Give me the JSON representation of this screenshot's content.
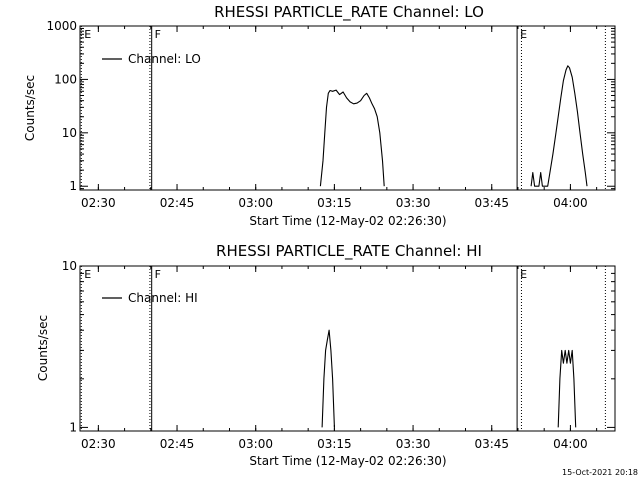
{
  "footer": {
    "timestamp": "15-Oct-2021 20:18"
  },
  "chart_data": [
    {
      "type": "line",
      "title": "RHESSI PARTICLE_RATE Channel: LO",
      "xlabel": "Start Time (12-May-02 02:26:30)",
      "ylabel": "Counts/sec",
      "y_scale": "log",
      "ylim": [
        0.85,
        1000
      ],
      "xlim": [
        "02:26:30",
        "04:08:30"
      ],
      "x_ticks": [
        "02:30",
        "02:45",
        "03:00",
        "03:15",
        "03:30",
        "03:45",
        "04:00"
      ],
      "y_ticks": [
        {
          "value": 1,
          "label": "1"
        },
        {
          "value": 10,
          "label": "10"
        },
        {
          "value": 100,
          "label": "100"
        },
        {
          "value": 1000,
          "label": "1000"
        }
      ],
      "legend": {
        "label": "Channel: LO",
        "position": "top-left"
      },
      "markers": [
        {
          "time": "02:26:45",
          "style": "dotted",
          "label": "E"
        },
        {
          "time": "02:39:50",
          "style": "dotted",
          "label": ""
        },
        {
          "time": "02:40:10",
          "style": "solid",
          "label": "F"
        },
        {
          "time": "03:49:50",
          "style": "solid",
          "label": "E"
        },
        {
          "time": "03:50:40",
          "style": "dotted",
          "label": ""
        },
        {
          "time": "04:06:40",
          "style": "dotted",
          "label": ""
        }
      ],
      "series": [
        {
          "name": "Channel: LO",
          "points": [
            [
              "03:12:20",
              1
            ],
            [
              "03:12:50",
              3
            ],
            [
              "03:13:10",
              10
            ],
            [
              "03:13:30",
              30
            ],
            [
              "03:13:50",
              55
            ],
            [
              "03:14:10",
              62
            ],
            [
              "03:14:40",
              60
            ],
            [
              "03:15:20",
              63
            ],
            [
              "03:16:00",
              52
            ],
            [
              "03:16:40",
              58
            ],
            [
              "03:17:20",
              45
            ],
            [
              "03:18:00",
              38
            ],
            [
              "03:18:40",
              35
            ],
            [
              "03:19:20",
              36
            ],
            [
              "03:20:00",
              40
            ],
            [
              "03:20:40",
              50
            ],
            [
              "03:21:10",
              55
            ],
            [
              "03:21:40",
              45
            ],
            [
              "03:22:10",
              35
            ],
            [
              "03:22:40",
              28
            ],
            [
              "03:23:10",
              20
            ],
            [
              "03:23:40",
              10
            ],
            [
              "03:24:10",
              3
            ],
            [
              "03:24:30",
              1
            ]
          ]
        },
        {
          "name": "Channel: LO",
          "points": [
            [
              "03:52:30",
              1
            ],
            [
              "03:52:50",
              1.8
            ],
            [
              "03:53:10",
              1
            ],
            [
              "03:54:00",
              1
            ],
            [
              "03:54:20",
              1.8
            ],
            [
              "03:54:40",
              1
            ],
            [
              "03:55:40",
              1
            ],
            [
              "03:56:10",
              2
            ],
            [
              "03:56:40",
              4
            ],
            [
              "03:57:10",
              9
            ],
            [
              "03:57:40",
              20
            ],
            [
              "03:58:10",
              45
            ],
            [
              "03:58:40",
              95
            ],
            [
              "03:59:10",
              150
            ],
            [
              "03:59:30",
              180
            ],
            [
              "03:59:50",
              165
            ],
            [
              "04:00:20",
              110
            ],
            [
              "04:00:50",
              55
            ],
            [
              "04:01:20",
              25
            ],
            [
              "04:01:50",
              10
            ],
            [
              "04:02:20",
              4
            ],
            [
              "04:02:50",
              1.8
            ],
            [
              "04:03:10",
              1
            ]
          ]
        }
      ]
    },
    {
      "type": "line",
      "title": "RHESSI PARTICLE_RATE Channel: HI",
      "xlabel": "Start Time (12-May-02 02:26:30)",
      "ylabel": "Counts/sec",
      "y_scale": "log",
      "ylim": [
        0.95,
        10
      ],
      "xlim": [
        "02:26:30",
        "04:08:30"
      ],
      "x_ticks": [
        "02:30",
        "02:45",
        "03:00",
        "03:15",
        "03:30",
        "03:45",
        "04:00"
      ],
      "y_ticks": [
        {
          "value": 1,
          "label": "1"
        },
        {
          "value": 10,
          "label": "10"
        }
      ],
      "legend": {
        "label": "Channel: HI",
        "position": "top-left"
      },
      "markers": [
        {
          "time": "02:26:45",
          "style": "dotted",
          "label": "E"
        },
        {
          "time": "02:39:50",
          "style": "dotted",
          "label": ""
        },
        {
          "time": "02:40:10",
          "style": "solid",
          "label": "F"
        },
        {
          "time": "03:49:50",
          "style": "solid",
          "label": "E"
        },
        {
          "time": "03:50:40",
          "style": "dotted",
          "label": ""
        },
        {
          "time": "04:06:40",
          "style": "dotted",
          "label": ""
        }
      ],
      "series": [
        {
          "name": "Channel: HI",
          "points": [
            [
              "03:12:40",
              1
            ],
            [
              "03:13:00",
              2
            ],
            [
              "03:13:20",
              3
            ],
            [
              "03:13:40",
              3.5
            ],
            [
              "03:14:00",
              4
            ],
            [
              "03:14:20",
              3
            ],
            [
              "03:14:40",
              2
            ],
            [
              "03:15:00",
              1
            ]
          ]
        },
        {
          "name": "Channel: HI",
          "points": [
            [
              "03:57:40",
              1
            ],
            [
              "03:58:00",
              2
            ],
            [
              "03:58:20",
              3
            ],
            [
              "03:58:40",
              2.5
            ],
            [
              "03:59:00",
              3
            ],
            [
              "03:59:20",
              2.5
            ],
            [
              "03:59:40",
              3
            ],
            [
              "04:00:00",
              2.5
            ],
            [
              "04:00:20",
              3
            ],
            [
              "04:00:40",
              2
            ],
            [
              "04:01:00",
              1
            ]
          ]
        }
      ]
    }
  ]
}
